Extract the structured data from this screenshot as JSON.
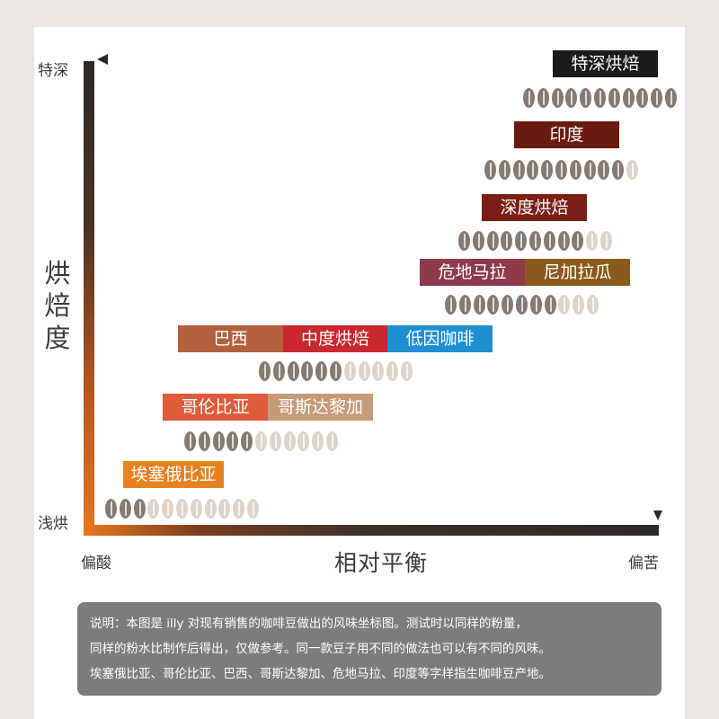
{
  "chart_data": {
    "type": "scatter",
    "title": "",
    "xlabel": "相对平衡",
    "ylabel": "烘焙度",
    "x_min_label": "偏酸",
    "x_max_label": "偏苦",
    "y_min_label": "浅烘",
    "y_max_label": "特深",
    "beans_total": 11,
    "groups": [
      {
        "labels": [
          "埃塞俄比亚"
        ],
        "roast_level": 3
      },
      {
        "labels": [
          "哥伦比亚",
          "哥斯达黎加"
        ],
        "roast_level": 5
      },
      {
        "labels": [
          "巴西",
          "中度烘焙",
          "低因咖啡"
        ],
        "roast_level": 6
      },
      {
        "labels": [
          "危地马拉",
          "尼加拉瓜"
        ],
        "roast_level": 8
      },
      {
        "labels": [
          "深度烘焙"
        ],
        "roast_level": 9
      },
      {
        "labels": [
          "印度"
        ],
        "roast_level": 10
      },
      {
        "labels": [
          "特深烘焙"
        ],
        "roast_level": 11
      }
    ],
    "colors": {
      "埃塞俄比亚": "#e8811f",
      "哥伦比亚": "#e05a3c",
      "哥斯达黎加": "#c59a78",
      "巴西": "#b5603c",
      "中度烘焙": "#c8282e",
      "低因咖啡": "#1f8fd2",
      "危地马拉": "#8e3a4a",
      "尼加拉瓜": "#8a5a1c",
      "深度烘焙": "#7a1e16",
      "印度": "#6b1a10",
      "特深烘焙": "#1c1a19"
    }
  },
  "note": {
    "lines": [
      "说明：本图是 illy 对现有销售的咖啡豆做出的风味坐标图。测试时以同样的粉量，",
      "同样的粉水比制作后得出，仅做参考。同一款豆子用不同的做法也可以有不同的风味。",
      "埃塞俄比亚、哥伦比亚、巴西、哥斯达黎加、危地马拉、印度等字样指生咖啡豆产地。"
    ]
  }
}
